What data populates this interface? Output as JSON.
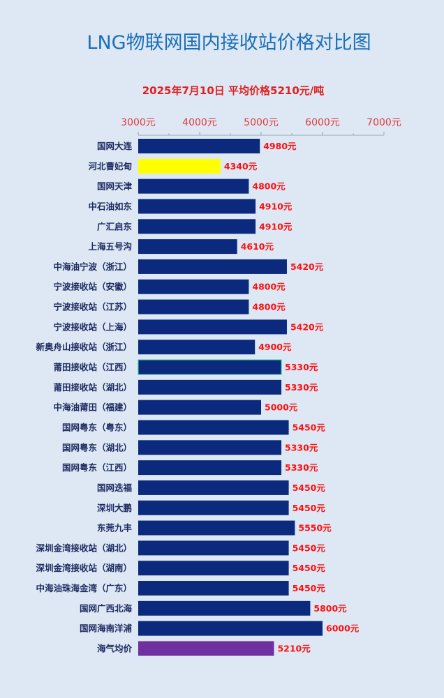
{
  "chart_data": {
    "type": "bar",
    "orientation": "horizontal",
    "title": "LNG物联网国内接收站价格对比图",
    "subtitle": "2025年7月10日 平均价格5210元/吨",
    "xlim": [
      3000,
      7000
    ],
    "x_ticks": [
      "3000元",
      "4000元",
      "5000元",
      "6000元",
      "7000元"
    ],
    "x_axis_position": "top",
    "grid": false,
    "categories": [
      "国网大连",
      "河北曹妃甸",
      "国网天津",
      "中石油如东",
      "广汇启东",
      "上海五号沟",
      "中海油宁波（浙江）",
      "宁波接收站（安徽）",
      "宁波接收站（江苏）",
      "宁波接收站（上海）",
      "新奥舟山接收站（浙江）",
      "莆田接收站（江西）",
      "莆田接收站（湖北）",
      "中海油莆田（福建）",
      "国网粤东（粤东）",
      "国网粤东（湖北）",
      "国网粤东（江西）",
      "国网迭福",
      "深圳大鹏",
      "东莞九丰",
      "深圳金湾接收站（湖北）",
      "深圳金湾接收站（湖南）",
      "中海油珠海金湾（广东）",
      "国网广西北海",
      "国网海南洋浦",
      "海气均价"
    ],
    "values": [
      4980,
      4340,
      4800,
      4910,
      4910,
      4610,
      5420,
      4800,
      4800,
      5420,
      4900,
      5330,
      5330,
      5000,
      5450,
      5330,
      5330,
      5450,
      5450,
      5550,
      5450,
      5450,
      5450,
      5800,
      6000,
      5210
    ],
    "value_labels": [
      "4980元",
      "4340元",
      "4800元",
      "4910元",
      "4910元",
      "4610元",
      "5420元",
      "4800元",
      "4800元",
      "5420元",
      "4900元",
      "5330元",
      "5330元",
      "5000元",
      "5450元",
      "5330元",
      "5330元",
      "5450元",
      "5450元",
      "5550元",
      "5450元",
      "5450元",
      "5450元",
      "5800元",
      "6000元",
      "5210元"
    ],
    "colors": {
      "default": "#0b2a7e",
      "河北曹妃甸": "#ffff00",
      "海气均价": "#7030a0",
      "highlight_border": "#33cc99",
      "title": "#1b6fb8",
      "subtitle": "#e02020",
      "value_label": "#ff1010",
      "category_label": "#1e2a60",
      "background": "#dde8f4"
    },
    "highlighted_bordered_category": "莆田接收站（江西）"
  }
}
